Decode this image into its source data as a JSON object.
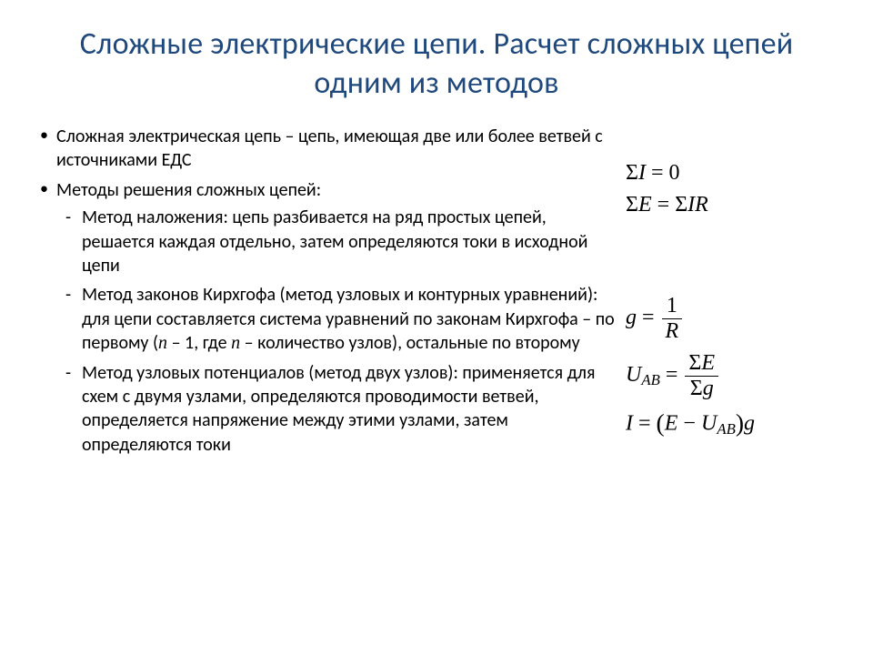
{
  "title": "Сложные электрические цепи. Расчет сложных цепей одним из методов",
  "bullets": [
    {
      "text": "Сложная электрическая цепь – цепь, имеющая две или более ветвей с источниками ЕДС"
    },
    {
      "text": "Методы решения сложных цепей:",
      "children": [
        "Метод наложения: цепь разбивается на ряд простых цепей, решается каждая отдельно, затем определяются токи в исходной цепи",
        "Метод законов Кирхгофа (метод узловых и контурных уравнений): для цепи составляется система уравнений по законам Кирхгофа – по первому (",
        "Метод узловых потенциалов (метод двух узлов): применяется для схем с двумя узлами, определяются проводимости ветвей, определяется напряжение между этими узлами, затем определяются токи"
      ]
    }
  ],
  "kirch_tail1": " – 1, где ",
  "kirch_tail2": " – количество узлов), остальные по второму",
  "n_var": "n",
  "eq": {
    "sigma": "Σ",
    "I": "I",
    "E": "E",
    "R": "R",
    "g": "g",
    "U": "U",
    "AB": "AB",
    "eq0": " = 0",
    "eq": " = ",
    "one": "1",
    "minus": " − ",
    "lp": "(",
    "rp": ")"
  },
  "style": {
    "title_color": "#1f497d",
    "body_font": "Calibri",
    "eq_font": "Times New Roman",
    "title_fontsize": 34,
    "body_fontsize": 20,
    "eq_fontsize": 24,
    "background": "#ffffff",
    "text_color": "#000000"
  }
}
